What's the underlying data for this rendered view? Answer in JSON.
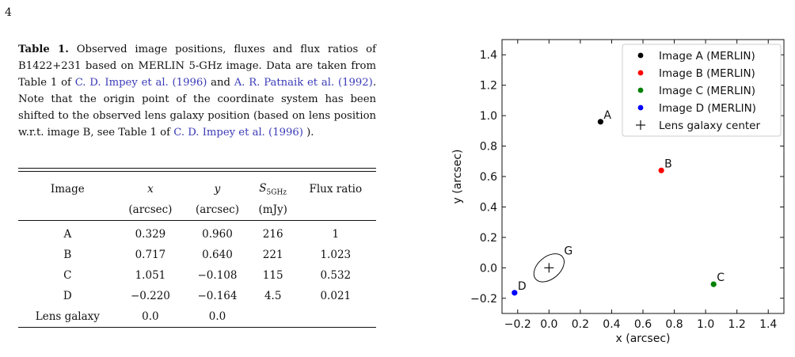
{
  "page_number": "4",
  "caption": {
    "label": "Table 1.",
    "text_1": " Observed image positions, fluxes and flux ratios of B1422+231 based on MERLIN 5-GHz image. Data are taken from Table 1 of ",
    "cite_1": "C. D. Impey et al. (1996)",
    "text_2": " and ",
    "cite_2": "A. R. Patnaik et al. (1992)",
    "text_3": ". Note that the origin point of the coordinate system has been shifted to the observed lens galaxy position (based on lens position w.r.t. image B, see Table 1 of ",
    "cite_3": "C. D. Impey et al. (1996)",
    "text_4": " )."
  },
  "table": {
    "headers": {
      "image": "Image",
      "x": "x",
      "y": "y",
      "s_main": "S",
      "s_sub": "5GHz",
      "flux_ratio": "Flux ratio"
    },
    "units": {
      "x": "(arcsec)",
      "y": "(arcsec)",
      "s": "(mJy)"
    },
    "rows": [
      [
        "A",
        "0.329",
        "0.960",
        "216",
        "1"
      ],
      [
        "B",
        "0.717",
        "0.640",
        "221",
        "1.023"
      ],
      [
        "C",
        "1.051",
        "−0.108",
        "115",
        "0.532"
      ],
      [
        "D",
        "−0.220",
        "−0.164",
        "4.5",
        "0.021"
      ],
      [
        "Lens galaxy",
        "0.0",
        "0.0",
        "",
        ""
      ]
    ]
  },
  "chart_data": {
    "type": "scatter",
    "xlabel": "x (arcsec)",
    "ylabel": "y (arcsec)",
    "xlim": [
      -0.3,
      1.5
    ],
    "ylim": [
      -0.3,
      1.5
    ],
    "xticks": [
      -0.2,
      0.0,
      0.2,
      0.4,
      0.6,
      0.8,
      1.0,
      1.2,
      1.4
    ],
    "yticks": [
      -0.2,
      0.0,
      0.2,
      0.4,
      0.6,
      0.8,
      1.0,
      1.2,
      1.4
    ],
    "xtick_labels": [
      "−0.2",
      "0.0",
      "0.2",
      "0.4",
      "0.6",
      "0.8",
      "1.0",
      "1.2",
      "1.4"
    ],
    "ytick_labels": [
      "−0.2",
      "0.0",
      "0.2",
      "0.4",
      "0.6",
      "0.8",
      "1.0",
      "1.2",
      "1.4"
    ],
    "grid": false,
    "legend_position": "top-right",
    "series": [
      {
        "name": "Image A (MERLIN)",
        "label": "A",
        "x": 0.329,
        "y": 0.96,
        "color": "#000000",
        "marker": "dot"
      },
      {
        "name": "Image B (MERLIN)",
        "label": "B",
        "x": 0.717,
        "y": 0.64,
        "color": "#ff0000",
        "marker": "dot"
      },
      {
        "name": "Image C (MERLIN)",
        "label": "C",
        "x": 1.051,
        "y": -0.108,
        "color": "#008000",
        "marker": "dot"
      },
      {
        "name": "Image D (MERLIN)",
        "label": "D",
        "x": -0.22,
        "y": -0.164,
        "color": "#0000ff",
        "marker": "dot"
      },
      {
        "name": "Lens galaxy center",
        "label": "G",
        "x": 0.0,
        "y": 0.0,
        "color": "#000000",
        "marker": "plus"
      }
    ]
  }
}
